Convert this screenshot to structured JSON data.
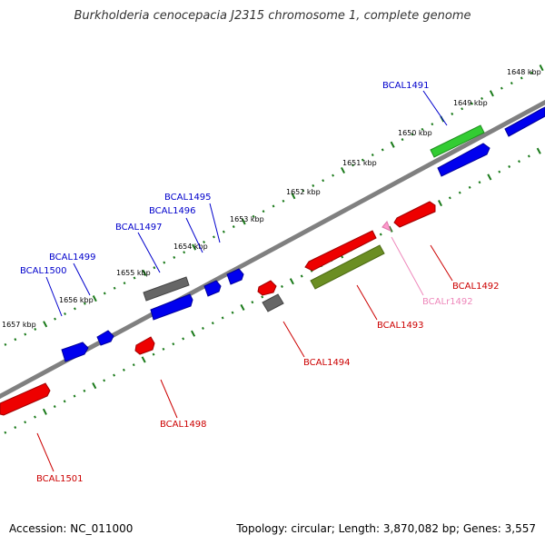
{
  "title": "Burkholderia cenocepacia J2315 chromosome 1, complete genome",
  "footer": {
    "accession": "Accession: NC_011000",
    "topology": "Topology: circular; Length: 3,870,082 bp; Genes: 3,557"
  },
  "colors": {
    "backbone": "#808080",
    "tick": "#1a7a1a",
    "label_blue": "#0000cc",
    "label_red": "#cc0000",
    "label_pink": "#ee88bb"
  },
  "kbp_labels": [
    "1648 kbp",
    "1649 kbp",
    "1650 kbp",
    "1651 kbp",
    "1652 kbp",
    "1653 kbp",
    "1654 kbp",
    "1655 kbp",
    "1656 kbp",
    "1657 kbp"
  ],
  "genes": {
    "BCAL1491": "BCAL1491",
    "BCAL1492": "BCAL1492",
    "BCALr1492": "BCALr1492",
    "BCAL1493": "BCAL1493",
    "BCAL1494": "BCAL1494",
    "BCAL1495": "BCAL1495",
    "BCAL1496": "BCAL1496",
    "BCAL1497": "BCAL1497",
    "BCAL1498": "BCAL1498",
    "BCAL1499": "BCAL1499",
    "BCAL1500": "BCAL1500",
    "BCAL1501": "BCAL1501"
  }
}
